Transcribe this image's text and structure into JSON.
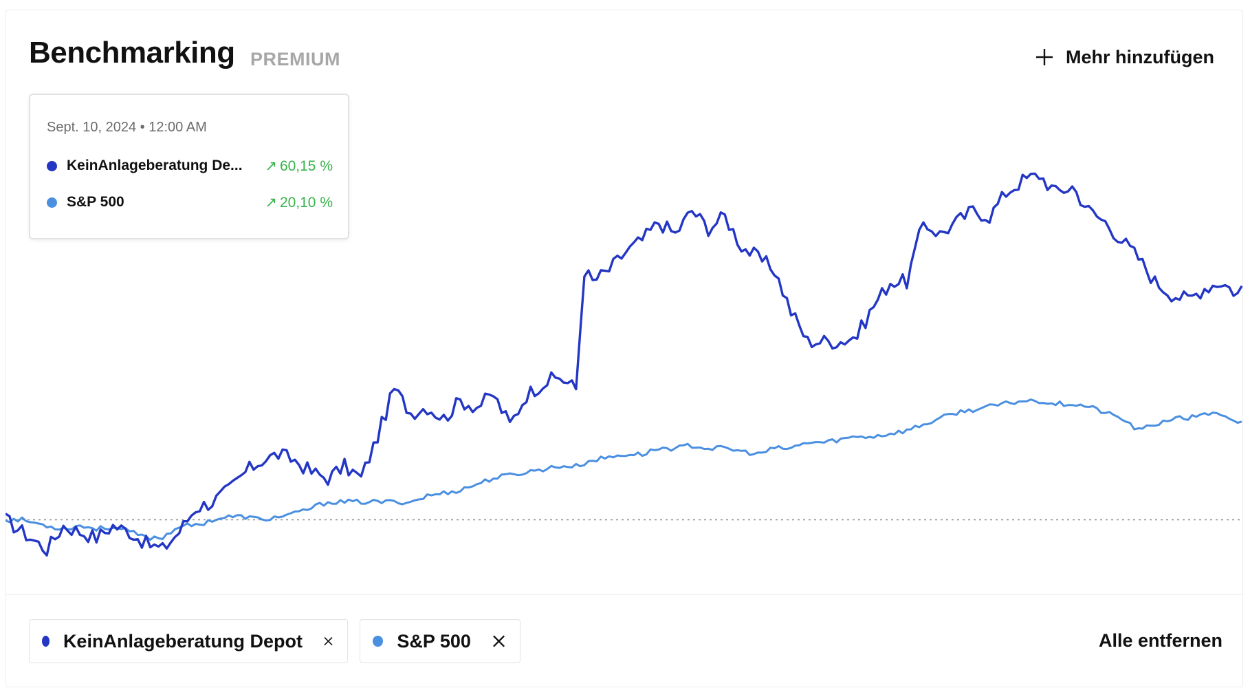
{
  "header": {
    "title": "Benchmarking",
    "badge": "PREMIUM",
    "add_label": "Mehr hinzufügen",
    "add_icon": "plus-icon"
  },
  "tooltip": {
    "date": "Sept. 10, 2024 • 12:00 AM",
    "rows": [
      {
        "name": "KeinAnlageberatung De...",
        "arrow": "↗",
        "value": "60,15  %",
        "color": "#2336c4"
      },
      {
        "name": "S&P 500",
        "arrow": "↗",
        "value": "20,10  %",
        "color": "#4a8fe0"
      }
    ]
  },
  "chips": [
    {
      "name": "KeinAnlageberatung Depot",
      "color": "#2336c4",
      "remove_icon": "close-icon"
    },
    {
      "name": "S&P 500",
      "color": "#4a8fe0",
      "remove_icon": "close-icon"
    }
  ],
  "remove_all_label": "Alle entfernen",
  "colors": {
    "depot": "#2336c4",
    "sp500": "#4a8fe0",
    "gain": "#36b24a"
  },
  "chart_data": {
    "type": "line",
    "title": "",
    "xlabel": "",
    "ylabel": "",
    "ylim": [
      -10,
      70
    ],
    "baseline": 0,
    "grid": false,
    "legend": "bottom",
    "x_points": 300,
    "series": [
      {
        "name": "KeinAnlageberatung Depot",
        "color": "#2336c4",
        "keypoints": [
          [
            0,
            0
          ],
          [
            4,
            -2
          ],
          [
            10,
            -5
          ],
          [
            14,
            -1
          ],
          [
            18,
            -2
          ],
          [
            22,
            -3
          ],
          [
            26,
            -1
          ],
          [
            30,
            -2
          ],
          [
            34,
            -4
          ],
          [
            38,
            -5
          ],
          [
            42,
            -2
          ],
          [
            46,
            2
          ],
          [
            50,
            3
          ],
          [
            54,
            5
          ],
          [
            58,
            8
          ],
          [
            62,
            10
          ],
          [
            66,
            11
          ],
          [
            70,
            10
          ],
          [
            74,
            8
          ],
          [
            78,
            7
          ],
          [
            82,
            9
          ],
          [
            86,
            7
          ],
          [
            90,
            14
          ],
          [
            94,
            22
          ],
          [
            98,
            18
          ],
          [
            102,
            19
          ],
          [
            106,
            17
          ],
          [
            110,
            20
          ],
          [
            114,
            19
          ],
          [
            118,
            21
          ],
          [
            122,
            16
          ],
          [
            126,
            21
          ],
          [
            130,
            23
          ],
          [
            134,
            24
          ],
          [
            138,
            22
          ],
          [
            140,
            42
          ],
          [
            142,
            40
          ],
          [
            146,
            42
          ],
          [
            150,
            45
          ],
          [
            154,
            47
          ],
          [
            158,
            50
          ],
          [
            162,
            48
          ],
          [
            166,
            52
          ],
          [
            170,
            49
          ],
          [
            174,
            51
          ],
          [
            178,
            46
          ],
          [
            182,
            44
          ],
          [
            186,
            42
          ],
          [
            190,
            35
          ],
          [
            194,
            30
          ],
          [
            198,
            30
          ],
          [
            202,
            30
          ],
          [
            206,
            31
          ],
          [
            210,
            36
          ],
          [
            214,
            40
          ],
          [
            218,
            40
          ],
          [
            222,
            50
          ],
          [
            226,
            48
          ],
          [
            230,
            50
          ],
          [
            234,
            52
          ],
          [
            238,
            51
          ],
          [
            242,
            55
          ],
          [
            246,
            57
          ],
          [
            250,
            58
          ],
          [
            254,
            55
          ],
          [
            258,
            56
          ],
          [
            262,
            52
          ],
          [
            266,
            50
          ],
          [
            270,
            47
          ],
          [
            274,
            44
          ],
          [
            278,
            40
          ],
          [
            282,
            38
          ],
          [
            286,
            37
          ],
          [
            290,
            39
          ],
          [
            294,
            40
          ],
          [
            298,
            38
          ],
          [
            299,
            39
          ]
        ]
      },
      {
        "name": "S&P 500",
        "color": "#4a8fe0",
        "keypoints": [
          [
            0,
            0
          ],
          [
            4,
            0
          ],
          [
            10,
            -1
          ],
          [
            14,
            -1.5
          ],
          [
            18,
            -1
          ],
          [
            22,
            -1.5
          ],
          [
            26,
            -1.2
          ],
          [
            30,
            -2
          ],
          [
            34,
            -3
          ],
          [
            38,
            -3
          ],
          [
            42,
            -1
          ],
          [
            46,
            -1
          ],
          [
            50,
            0
          ],
          [
            54,
            0.5
          ],
          [
            58,
            0.5
          ],
          [
            62,
            0
          ],
          [
            66,
            0.5
          ],
          [
            70,
            1
          ],
          [
            74,
            2
          ],
          [
            78,
            3
          ],
          [
            82,
            3
          ],
          [
            86,
            3
          ],
          [
            90,
            3
          ],
          [
            94,
            3
          ],
          [
            98,
            3
          ],
          [
            102,
            4
          ],
          [
            106,
            4.5
          ],
          [
            110,
            5
          ],
          [
            114,
            6
          ],
          [
            118,
            7
          ],
          [
            122,
            7.5
          ],
          [
            126,
            8
          ],
          [
            130,
            8.5
          ],
          [
            134,
            9
          ],
          [
            138,
            9
          ],
          [
            142,
            10
          ],
          [
            146,
            10.5
          ],
          [
            150,
            11
          ],
          [
            154,
            11
          ],
          [
            158,
            12
          ],
          [
            162,
            12
          ],
          [
            166,
            12.5
          ],
          [
            170,
            12
          ],
          [
            174,
            12
          ],
          [
            178,
            11.5
          ],
          [
            182,
            11
          ],
          [
            186,
            12
          ],
          [
            190,
            12
          ],
          [
            194,
            13
          ],
          [
            198,
            13
          ],
          [
            202,
            13.5
          ],
          [
            206,
            14
          ],
          [
            210,
            14
          ],
          [
            214,
            14.5
          ],
          [
            218,
            15
          ],
          [
            222,
            16
          ],
          [
            226,
            17
          ],
          [
            230,
            18
          ],
          [
            234,
            18.5
          ],
          [
            238,
            19
          ],
          [
            242,
            19.5
          ],
          [
            246,
            20
          ],
          [
            250,
            20
          ],
          [
            254,
            19.5
          ],
          [
            258,
            19.5
          ],
          [
            262,
            19
          ],
          [
            266,
            18
          ],
          [
            270,
            17
          ],
          [
            274,
            15
          ],
          [
            278,
            16
          ],
          [
            282,
            17
          ],
          [
            286,
            17
          ],
          [
            290,
            18
          ],
          [
            294,
            17.5
          ],
          [
            298,
            16
          ],
          [
            299,
            16.5
          ]
        ]
      }
    ]
  }
}
